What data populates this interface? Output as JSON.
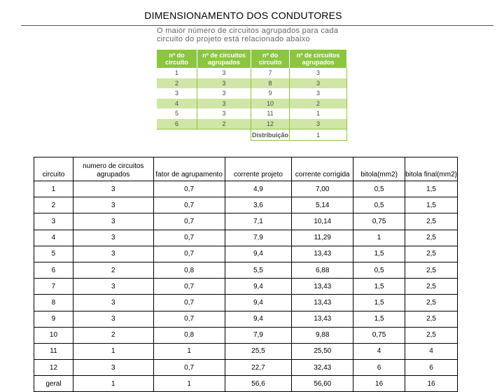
{
  "title": "DIMENSIONAMENTO DOS CONDUTORES",
  "caption": "O maior número de circuitos agrupados para cada circuito do projeto está relacionado abaixo",
  "reference_table": {
    "headers": [
      "nº do circuito",
      "nº de circuitos agrupados",
      "nº do circuito",
      "nº de circuitos agrupados"
    ],
    "rows": [
      [
        "1",
        "3",
        "7",
        "3"
      ],
      [
        "2",
        "3",
        "8",
        "3"
      ],
      [
        "3",
        "3",
        "9",
        "3"
      ],
      [
        "4",
        "3",
        "10",
        "2"
      ],
      [
        "5",
        "3",
        "11",
        "1"
      ],
      [
        "6",
        "2",
        "12",
        "3"
      ]
    ],
    "footer_label": "Distribuição",
    "footer_value": "1",
    "header_color": "#8cc63f",
    "stripe_color": "#cfe6a6"
  },
  "main_table": {
    "headers": [
      "circuito",
      "numero de circuitos agrupados",
      "fator de agrupamento",
      "corrente projeto",
      "corrente corrigida",
      "bitola(mm2)",
      "bitola final(mm2)"
    ],
    "rows": [
      [
        "1",
        "3",
        "0,7",
        "4,9",
        "7,00",
        "0,5",
        "1,5"
      ],
      [
        "2",
        "3",
        "0,7",
        "3,6",
        "5,14",
        "0,5",
        "1,5"
      ],
      [
        "3",
        "3",
        "0,7",
        "7,1",
        "10,14",
        "0,75",
        "2,5"
      ],
      [
        "4",
        "3",
        "0,7",
        "7,9",
        "11,29",
        "1",
        "2,5"
      ],
      [
        "5",
        "3",
        "0,7",
        "9,4",
        "13,43",
        "1,5",
        "2,5"
      ],
      [
        "6",
        "2",
        "0,8",
        "5,5",
        "6,88",
        "0,5",
        "2,5"
      ],
      [
        "7",
        "3",
        "0,7",
        "9,4",
        "13,43",
        "1,5",
        "2,5"
      ],
      [
        "8",
        "3",
        "0,7",
        "9,4",
        "13,43",
        "1,5",
        "2,5"
      ],
      [
        "9",
        "3",
        "0,7",
        "9,4",
        "13,43",
        "1,5",
        "2,5"
      ],
      [
        "10",
        "2",
        "0,8",
        "7,9",
        "9,88",
        "0,75",
        "2,5"
      ],
      [
        "11",
        "1",
        "1",
        "25,5",
        "25,50",
        "4",
        "4"
      ],
      [
        "12",
        "3",
        "0,7",
        "22,7",
        "32,43",
        "6",
        "6"
      ],
      [
        "geral",
        "1",
        "1",
        "56,6",
        "56,60",
        "16",
        "16"
      ]
    ]
  }
}
